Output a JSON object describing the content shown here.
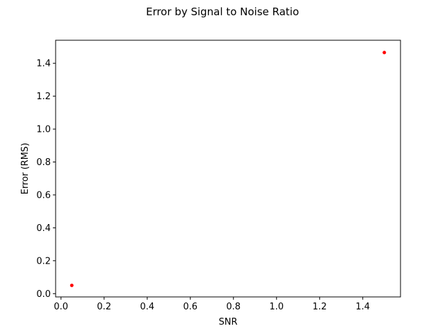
{
  "chart_data": {
    "type": "scatter",
    "title": "Error by Signal to Noise Ratio",
    "xlabel": "SNR",
    "ylabel": "Error (RMS)",
    "xlim": [
      -0.025,
      1.575
    ],
    "ylim": [
      -0.02,
      1.54
    ],
    "xticks": [
      0.0,
      0.2,
      0.4,
      0.6,
      0.8,
      1.0,
      1.2,
      1.4
    ],
    "xtick_labels": [
      "0.0",
      "0.2",
      "0.4",
      "0.6",
      "0.8",
      "1.0",
      "1.2",
      "1.4"
    ],
    "yticks": [
      0.0,
      0.2,
      0.4,
      0.6,
      0.8,
      1.0,
      1.2,
      1.4
    ],
    "ytick_labels": [
      "0.0",
      "0.2",
      "0.4",
      "0.6",
      "0.8",
      "1.0",
      "1.2",
      "1.4"
    ],
    "grid": false,
    "marker_color": "#ff0000",
    "points": [
      {
        "x": 0.05,
        "y": 0.05
      },
      {
        "x": 1.5,
        "y": 1.465
      }
    ]
  }
}
